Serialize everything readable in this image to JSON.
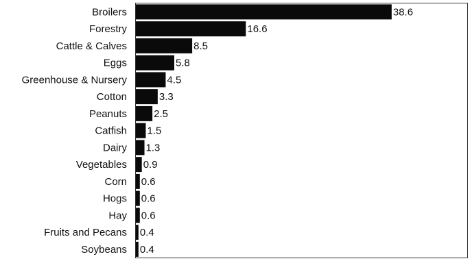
{
  "chart_data": {
    "type": "bar",
    "orientation": "horizontal",
    "categories": [
      "Broilers",
      "Forestry",
      "Cattle & Calves",
      "Eggs",
      "Greenhouse & Nursery",
      "Cotton",
      "Peanuts",
      "Catfish",
      "Dairy",
      "Vegetables",
      "Corn",
      "Hogs",
      "Hay",
      "Fruits and Pecans",
      "Soybeans"
    ],
    "values": [
      38.6,
      16.6,
      8.5,
      5.8,
      4.5,
      3.3,
      2.5,
      1.5,
      1.3,
      0.9,
      0.6,
      0.6,
      0.6,
      0.4,
      0.4
    ],
    "value_labels": [
      "38.6",
      "16.6",
      "8.5",
      "5.8",
      "4.5",
      "3.3",
      "2.5",
      "1.5",
      "1.3",
      "0.9",
      "0.6",
      "0.6",
      "0.6",
      "0.4",
      "0.4"
    ],
    "title": "",
    "xlabel": "",
    "ylabel": "",
    "xlim": [
      0,
      50
    ],
    "grid": false,
    "legend": "none",
    "bar_color": "#0a0a0a",
    "frame_color": "#333333"
  }
}
